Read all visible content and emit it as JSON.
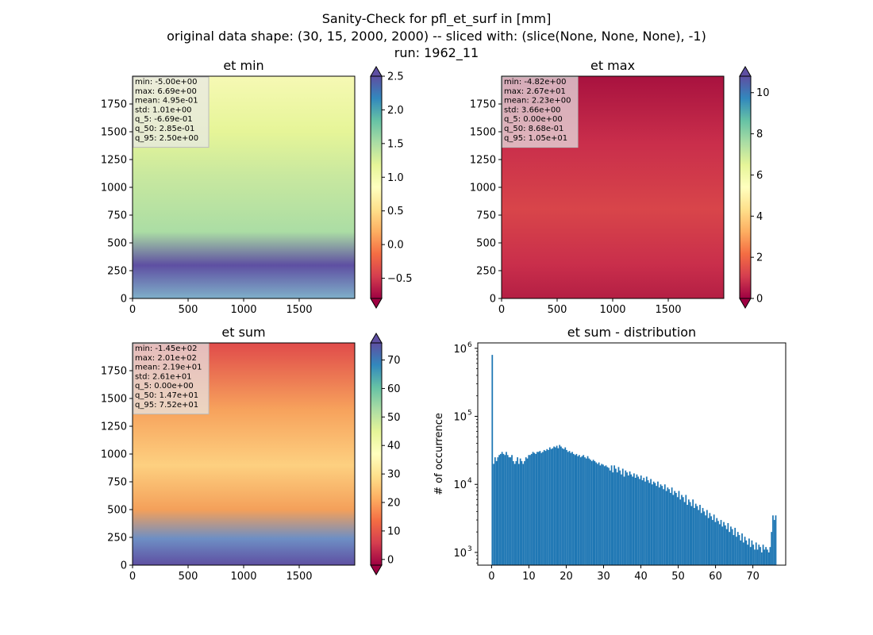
{
  "figure": {
    "title_lines": [
      "Sanity-Check for pfl_et_surf in [mm]",
      "original data shape: (30, 15, 2000, 2000) -- sliced with: (slice(None, None, None), -1)",
      "run: 1962_11"
    ]
  },
  "colors": {
    "spectral": [
      "#9e0142",
      "#d53e4f",
      "#f46d43",
      "#fdae61",
      "#fee08b",
      "#ffffbf",
      "#e6f598",
      "#abdda4",
      "#66c2a5",
      "#3288bd",
      "#5e4fa2"
    ],
    "histogram_bar": "#1f77b4",
    "stats_box_bg": "#e8e8e8",
    "stats_box_edge": "#bbbbbb"
  },
  "chart_data": [
    {
      "type": "heatmap",
      "id": "et_min",
      "title": "et min",
      "colormap": "Spectral",
      "xlim": [
        0,
        2000
      ],
      "ylim": [
        0,
        2000
      ],
      "xticks": [
        0,
        500,
        1000,
        1500
      ],
      "yticks": [
        0,
        250,
        500,
        750,
        1000,
        1250,
        1500,
        1750
      ],
      "colorbar": {
        "vmin": -0.8,
        "vmax": 2.5,
        "ticks": [
          -0.5,
          0.0,
          0.5,
          1.0,
          1.5,
          2.0,
          2.5
        ],
        "tick_labels": [
          "−0.5",
          "0.0",
          "0.5",
          "1.0",
          "1.5",
          "2.0",
          "2.5"
        ],
        "extend": "both"
      },
      "stats": [
        "min: -5.00e+00",
        "max: 6.69e+00",
        "mean: 4.95e-01",
        "std: 1.01e+00",
        "q_5: -6.69e-01",
        "q_50: 2.85e-01",
        "q_95: 2.50e+00"
      ]
    },
    {
      "type": "heatmap",
      "id": "et_max",
      "title": "et max",
      "colormap": "Spectral",
      "xlim": [
        0,
        2000
      ],
      "ylim": [
        0,
        2000
      ],
      "xticks": [
        0,
        500,
        1000,
        1500
      ],
      "yticks": [
        0,
        250,
        500,
        750,
        1000,
        1250,
        1500,
        1750
      ],
      "colorbar": {
        "vmin": 0,
        "vmax": 10.8,
        "ticks": [
          0,
          2,
          4,
          6,
          8,
          10
        ],
        "tick_labels": [
          "0",
          "2",
          "4",
          "6",
          "8",
          "10"
        ],
        "extend": "both"
      },
      "stats": [
        "min: -4.82e+00",
        "max: 2.67e+01",
        "mean: 2.23e+00",
        "std: 3.66e+00",
        "q_5: 0.00e+00",
        "q_50: 8.68e-01",
        "q_95: 1.05e+01"
      ]
    },
    {
      "type": "heatmap",
      "id": "et_sum",
      "title": "et sum",
      "colormap": "Spectral",
      "xlim": [
        0,
        2000
      ],
      "ylim": [
        0,
        2000
      ],
      "xticks": [
        0,
        500,
        1000,
        1500
      ],
      "yticks": [
        0,
        250,
        500,
        750,
        1000,
        1250,
        1500,
        1750
      ],
      "colorbar": {
        "vmin": -2,
        "vmax": 76,
        "ticks": [
          0,
          10,
          20,
          30,
          40,
          50,
          60,
          70
        ],
        "tick_labels": [
          "0",
          "10",
          "20",
          "30",
          "40",
          "50",
          "60",
          "70"
        ],
        "extend": "both"
      },
      "stats": [
        "min: -1.45e+02",
        "max: 2.01e+02",
        "mean: 2.19e+01",
        "std: 2.61e+01",
        "q_5: 0.00e+00",
        "q_50: 1.47e+01",
        "q_95: 7.52e+01"
      ]
    },
    {
      "type": "bar",
      "id": "et_sum_distribution",
      "title": "et sum - distribution",
      "ylabel": "# of occurrence",
      "xlabel": "",
      "yscale": "log",
      "xlim": [
        -3.7,
        78.8
      ],
      "ylim": [
        650,
        1200000
      ],
      "xticks": [
        0,
        10,
        20,
        30,
        40,
        50,
        60,
        70
      ],
      "yticks": [
        1000,
        10000,
        100000,
        1000000
      ],
      "ytick_labels": [
        [
          "10",
          "3"
        ],
        [
          "10",
          "4"
        ],
        [
          "10",
          "5"
        ],
        [
          "10",
          "6"
        ]
      ],
      "bin_start": 0,
      "bin_width": 0.376,
      "values": [
        800000,
        20000,
        25000,
        22000,
        25000,
        27000,
        28000,
        30000,
        28000,
        27000,
        30000,
        27000,
        25000,
        25000,
        27000,
        22000,
        20000,
        22000,
        25000,
        20000,
        24000,
        22000,
        20000,
        22000,
        25000,
        24000,
        27000,
        27000,
        28000,
        30000,
        29000,
        28000,
        30000,
        30000,
        31000,
        29000,
        30000,
        32000,
        31000,
        33000,
        32000,
        35000,
        33000,
        34000,
        36000,
        35000,
        37000,
        34000,
        38000,
        36000,
        34000,
        33000,
        35000,
        32000,
        30000,
        31000,
        29000,
        30000,
        28000,
        27000,
        28000,
        26000,
        27000,
        25000,
        26000,
        27000,
        25000,
        24000,
        26000,
        24000,
        23000,
        22000,
        23000,
        22000,
        21000,
        20000,
        21000,
        19000,
        20000,
        19500,
        18500,
        19000,
        18000,
        17500,
        16000,
        19000,
        15000,
        19000,
        17000,
        15000,
        18000,
        16000,
        14000,
        17000,
        13000,
        16000,
        15000,
        13500,
        15500,
        14000,
        13000,
        14500,
        12500,
        14000,
        13000,
        12000,
        13500,
        11500,
        12500,
        11000,
        13000,
        11500,
        10500,
        12000,
        10000,
        11000,
        10500,
        9500,
        11000,
        9000,
        10000,
        9500,
        8500,
        10000,
        8000,
        9000,
        8500,
        7500,
        9000,
        7000,
        8000,
        7500,
        6500,
        8000,
        6000,
        7000,
        6500,
        5500,
        7000,
        5000,
        6000,
        5500,
        4800,
        6000,
        4500,
        5200,
        4800,
        4200,
        5000,
        3800,
        4500,
        4000,
        3500,
        4200,
        3200,
        3800,
        3400,
        3000,
        3600,
        2800,
        3200,
        2900,
        2600,
        3000,
        2400,
        2800,
        2500,
        2200,
        2700,
        2000,
        2400,
        2200,
        1800,
        2300,
        1700,
        2000,
        1800,
        1500,
        1900,
        1400,
        1700,
        1500,
        1300,
        1600,
        1200,
        1500,
        1300,
        1100,
        1400,
        1100,
        1300,
        1200,
        1000,
        1300,
        1100,
        1200,
        1100,
        1000,
        1200,
        2000,
        3500,
        3000,
        3500
      ]
    }
  ]
}
